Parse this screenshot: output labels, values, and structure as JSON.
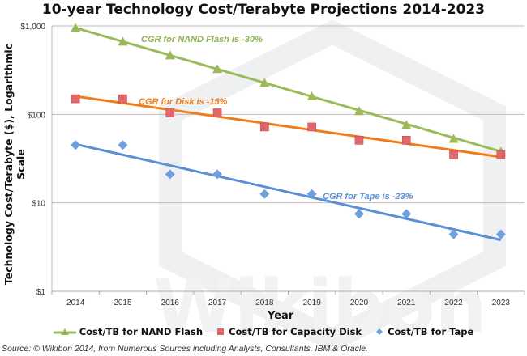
{
  "chart_data": {
    "type": "scatter",
    "title": "10-year Technology Cost/Terabyte Projections 2014-2023",
    "xlabel": "Year",
    "ylabel": "Technology Cost/Terabyte ($), Logarithmic Scale",
    "yscale": "log",
    "ylim": [
      1,
      1000
    ],
    "yticks": [
      "$1",
      "$10",
      "$100",
      "$1,000"
    ],
    "ytick_values": [
      1,
      10,
      100,
      1000
    ],
    "categories": [
      "2014",
      "2015",
      "2016",
      "2017",
      "2018",
      "2019",
      "2020",
      "2021",
      "2022",
      "2023"
    ],
    "grid": "horizontal",
    "legend_position": "bottom",
    "series": [
      {
        "name": "Cost/TB for NAND Flash",
        "marker": "triangle",
        "color": "#9bbb59",
        "line_color": "#9bbb59",
        "values": [
          950,
          665,
          465,
          326,
          228,
          160,
          109,
          76,
          53,
          38
        ],
        "trend": {
          "start": 950,
          "end": 38
        },
        "annotation": "CGR for NAND Flash is -30%"
      },
      {
        "name": "Cost/TB for Capacity Disk",
        "marker": "square",
        "color": "#e0686a",
        "line_color": "#f07d1a",
        "values": [
          150,
          150,
          104,
          104,
          72,
          72,
          51,
          51,
          35,
          35
        ],
        "trend": {
          "start": 160,
          "end": 33
        },
        "annotation": "CGR for Disk is -15%"
      },
      {
        "name": "Cost/TB for Tape",
        "marker": "diamond",
        "color": "#6f9fdc",
        "line_color": "#5b8fd6",
        "values": [
          45,
          45,
          21,
          21,
          12.6,
          12.6,
          7.5,
          7.5,
          4.4,
          4.4
        ],
        "trend": {
          "start": 46,
          "end": 3.8
        },
        "annotation": "CGR for Tape is -23%"
      }
    ]
  },
  "source": "Source: © Wikibon 2014, from Numerous Sources including Analysts, Consultants, IBM & Oracle.",
  "watermark": "Wikibon"
}
